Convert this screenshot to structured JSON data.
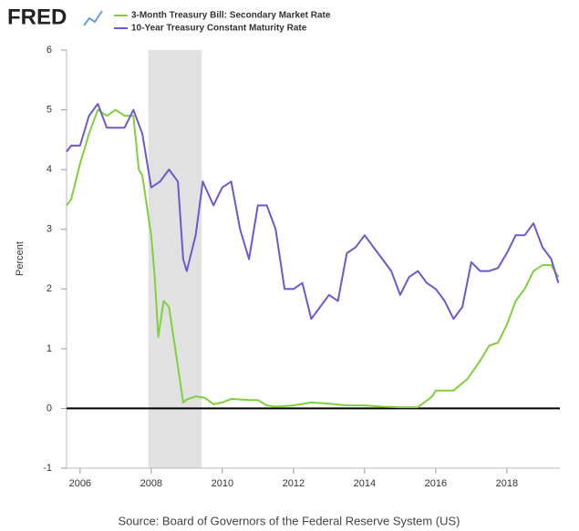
{
  "logo": "FRED",
  "chart_data": {
    "type": "line",
    "source": "Source: Board of Governors of the Federal Reserve System (US)",
    "y_label": "Percent",
    "xlim": [
      2005.62,
      2019.49
    ],
    "xticks": [
      2006,
      2008,
      2010,
      2012,
      2014,
      2016,
      2018
    ],
    "ylim": [
      -1,
      6
    ],
    "yticks": [
      -1,
      0,
      1,
      2,
      3,
      4,
      5,
      6
    ],
    "grid": false,
    "zero_line": true,
    "shaded_periods": [
      [
        2007.92,
        2009.42
      ]
    ],
    "shade_color": "#e1e1e1",
    "series": [
      {
        "name": "3-Month Treasury Bill: Secondary Market Rate",
        "color": "#7fd13b",
        "x": [
          2005.62,
          2005.75,
          2006.0,
          2006.25,
          2006.5,
          2006.75,
          2007.0,
          2007.25,
          2007.5,
          2007.65,
          2007.75,
          2007.9,
          2008.0,
          2008.1,
          2008.2,
          2008.35,
          2008.5,
          2008.75,
          2008.9,
          2009.0,
          2009.25,
          2009.5,
          2009.75,
          2010.0,
          2010.25,
          2010.5,
          2010.75,
          2011.0,
          2011.25,
          2011.5,
          2012.0,
          2012.5,
          2013.0,
          2013.5,
          2014.0,
          2014.5,
          2015.0,
          2015.5,
          2015.9,
          2016.0,
          2016.5,
          2016.9,
          2017.25,
          2017.5,
          2017.75,
          2018.0,
          2018.25,
          2018.5,
          2018.75,
          2019.0,
          2019.25,
          2019.45
        ],
        "values": [
          3.4,
          3.5,
          4.1,
          4.6,
          5.0,
          4.9,
          5.0,
          4.9,
          4.9,
          4.0,
          3.9,
          3.3,
          2.9,
          2.2,
          1.2,
          1.8,
          1.7,
          0.7,
          0.1,
          0.15,
          0.2,
          0.18,
          0.07,
          0.1,
          0.16,
          0.15,
          0.14,
          0.14,
          0.05,
          0.03,
          0.05,
          0.1,
          0.08,
          0.05,
          0.05,
          0.03,
          0.02,
          0.02,
          0.2,
          0.3,
          0.3,
          0.5,
          0.8,
          1.05,
          1.1,
          1.4,
          1.8,
          2.0,
          2.3,
          2.4,
          2.4,
          2.2
        ]
      },
      {
        "name": "10-Year Treasury Constant Maturity Rate",
        "color": "#6a5acd",
        "x": [
          2005.62,
          2005.75,
          2006.0,
          2006.25,
          2006.5,
          2006.75,
          2007.0,
          2007.25,
          2007.5,
          2007.75,
          2008.0,
          2008.25,
          2008.5,
          2008.75,
          2008.9,
          2009.0,
          2009.25,
          2009.45,
          2009.75,
          2010.0,
          2010.25,
          2010.5,
          2010.75,
          2011.0,
          2011.25,
          2011.5,
          2011.75,
          2012.0,
          2012.25,
          2012.5,
          2012.75,
          2013.0,
          2013.25,
          2013.5,
          2013.75,
          2014.0,
          2014.25,
          2014.5,
          2014.75,
          2015.0,
          2015.25,
          2015.5,
          2015.75,
          2016.0,
          2016.25,
          2016.5,
          2016.75,
          2017.0,
          2017.25,
          2017.5,
          2017.75,
          2018.0,
          2018.25,
          2018.5,
          2018.75,
          2019.0,
          2019.25,
          2019.45
        ],
        "values": [
          4.3,
          4.4,
          4.4,
          4.9,
          5.1,
          4.7,
          4.7,
          4.7,
          5.0,
          4.6,
          3.7,
          3.8,
          4.0,
          3.8,
          2.5,
          2.3,
          2.9,
          3.8,
          3.4,
          3.7,
          3.8,
          3.0,
          2.5,
          3.4,
          3.4,
          3.0,
          2.0,
          2.0,
          2.1,
          1.5,
          1.7,
          1.9,
          1.8,
          2.6,
          2.7,
          2.9,
          2.7,
          2.5,
          2.3,
          1.9,
          2.2,
          2.3,
          2.1,
          2.0,
          1.8,
          1.5,
          1.7,
          2.45,
          2.3,
          2.3,
          2.35,
          2.6,
          2.9,
          2.9,
          3.1,
          2.7,
          2.5,
          2.1
        ]
      }
    ]
  }
}
